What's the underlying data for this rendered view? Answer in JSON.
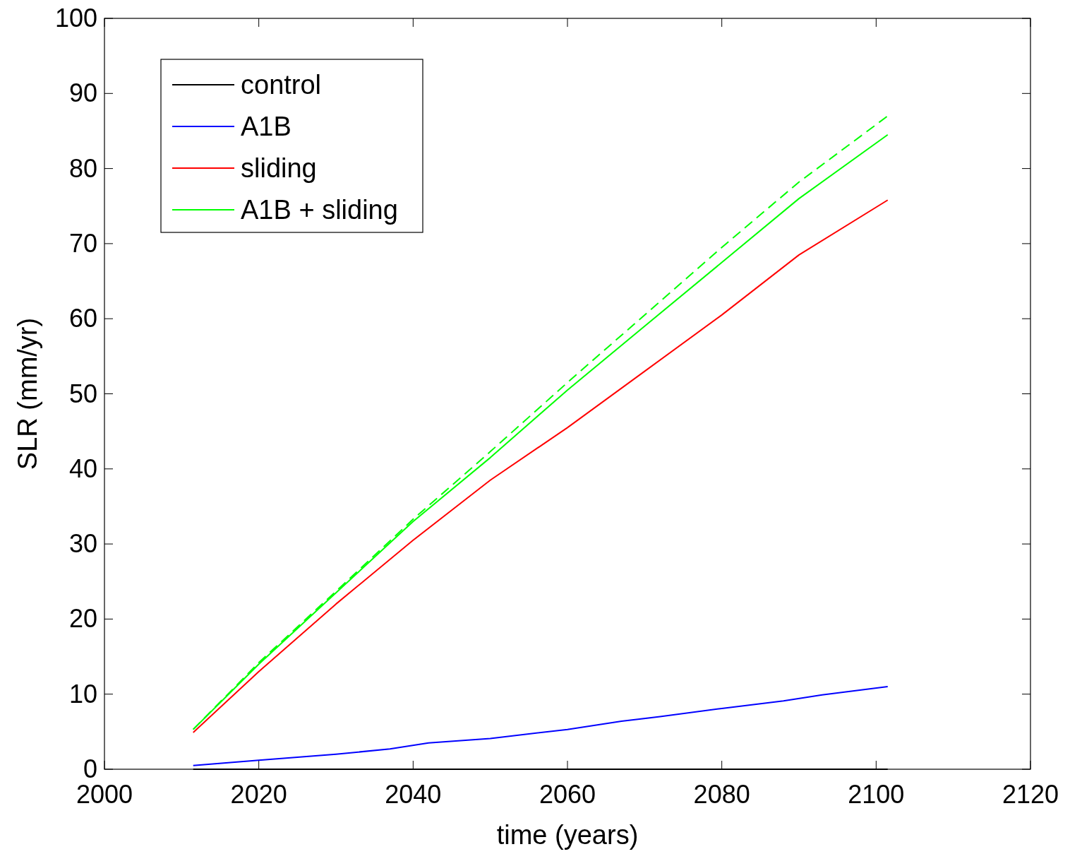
{
  "chart_data": {
    "type": "line",
    "xlabel": "time (years)",
    "ylabel": "SLR (mm/yr)",
    "xlim": [
      2000,
      2120
    ],
    "xticks": [
      2000,
      2020,
      2040,
      2060,
      2080,
      2100,
      2120
    ],
    "ylim": [
      0,
      100
    ],
    "yticks": [
      0,
      10,
      20,
      30,
      40,
      50,
      60,
      70,
      80,
      90,
      100
    ],
    "grid": false,
    "legend": "top left",
    "line_style": "solid",
    "marker": "none",
    "series": [
      {
        "name": "control",
        "color": "#000000",
        "x": [
          2011.5,
          2101.5
        ],
        "values": [
          0,
          0
        ]
      },
      {
        "name": "A1B",
        "color": "#0000ff",
        "x": [
          2011.5,
          2020,
          2030,
          2037,
          2042,
          2050,
          2060,
          2067,
          2072,
          2080,
          2088,
          2093,
          2101.5
        ],
        "values": [
          0.5,
          1.2,
          2.0,
          2.7,
          3.5,
          4.1,
          5.3,
          6.4,
          7.0,
          8.1,
          9.1,
          9.9,
          11.0
        ]
      },
      {
        "name": "sliding",
        "color": "#ff0000",
        "x": [
          2011.5,
          2020,
          2030,
          2040,
          2050,
          2060,
          2070,
          2080,
          2090,
          2101.5
        ],
        "values": [
          4.9,
          13.0,
          22.0,
          30.5,
          38.5,
          45.5,
          53.0,
          60.5,
          68.5,
          75.8
        ]
      },
      {
        "name": "A1B + sliding",
        "color": "#00ff00",
        "x": [
          2011.5,
          2020,
          2030,
          2040,
          2050,
          2060,
          2070,
          2080,
          2090,
          2101.5
        ],
        "values": [
          5.3,
          14.0,
          23.5,
          33.0,
          41.5,
          50.5,
          59.0,
          67.5,
          76.0,
          84.5
        ]
      },
      {
        "color": "#00ff00",
        "line_style": "dashed",
        "x": [
          2011.5,
          2020,
          2030,
          2040,
          2050,
          2060,
          2070,
          2080,
          2090,
          2101.5
        ],
        "values": [
          5.3,
          14.2,
          23.7,
          33.3,
          42.3,
          51.5,
          60.5,
          69.5,
          78.2,
          87.0
        ]
      }
    ]
  }
}
